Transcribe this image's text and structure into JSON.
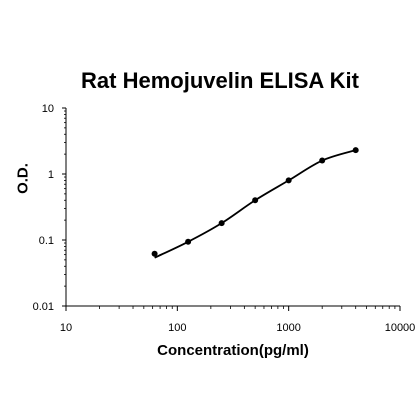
{
  "chart_data": {
    "type": "scatter",
    "title": "Rat Hemojuvelin ELISA Kit",
    "xlabel": "Concentration(pg/ml)",
    "ylabel": "O.D.",
    "x_scale": "log",
    "y_scale": "log",
    "xlim": [
      10,
      10000
    ],
    "ylim": [
      0.01,
      10
    ],
    "x_ticks": [
      "10",
      "100",
      "1000",
      "10000"
    ],
    "y_ticks": [
      "10",
      "1",
      "0.1",
      "0.01"
    ],
    "grid": false,
    "series": [
      {
        "x": [
          62.5,
          125,
          250,
          500,
          1000,
          2000,
          4000
        ],
        "y": [
          0.062,
          0.094,
          0.18,
          0.4,
          0.8,
          1.6,
          2.3
        ],
        "fit_curve": true
      }
    ],
    "colors": {
      "line": "#000000",
      "points": "#000000",
      "axis": "#000000"
    }
  }
}
